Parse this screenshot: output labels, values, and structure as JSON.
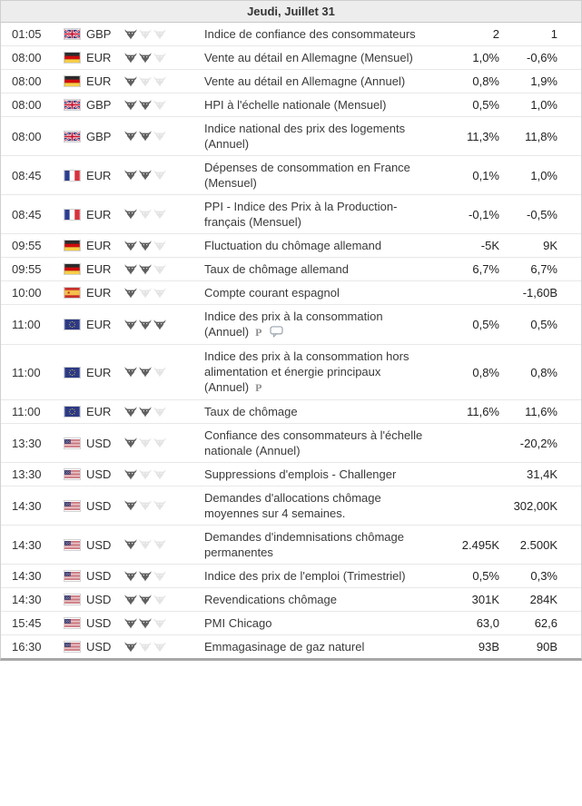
{
  "header": {
    "title": "Jeudi, Juillet 31"
  },
  "colors": {
    "header_bg": "#ededed",
    "row_border": "#e8e8e8",
    "outer_border": "#cfcfcf",
    "bottom_bar": "#a8a8a8",
    "bull_active": "#5f5f5f",
    "bull_inactive": "#e4e4e4",
    "text": "#333333"
  },
  "icons_legend": {
    "bull": "importance-bull-icon",
    "preliminary": "preliminary-p-icon",
    "comment": "comment-bubble-icon"
  },
  "rows": [
    {
      "time": "01:05",
      "country": "united-kingdom",
      "currency": "GBP",
      "importance": 1,
      "event": "Indice de confiance des consommateurs",
      "forecast": "2",
      "previous": "1",
      "icons": []
    },
    {
      "time": "08:00",
      "country": "germany",
      "currency": "EUR",
      "importance": 2,
      "event": "Vente au détail en Allemagne (Mensuel)",
      "forecast": "1,0%",
      "previous": "-0,6%",
      "icons": []
    },
    {
      "time": "08:00",
      "country": "germany",
      "currency": "EUR",
      "importance": 1,
      "event": "Vente au détail en Allemagne (Annuel)",
      "forecast": "0,8%",
      "previous": "1,9%",
      "icons": []
    },
    {
      "time": "08:00",
      "country": "united-kingdom",
      "currency": "GBP",
      "importance": 2,
      "event": "HPI à l'échelle nationale (Mensuel)",
      "forecast": "0,5%",
      "previous": "1,0%",
      "icons": []
    },
    {
      "time": "08:00",
      "country": "united-kingdom",
      "currency": "GBP",
      "importance": 2,
      "event": "Indice national des prix des logements (Annuel)",
      "forecast": "11,3%",
      "previous": "11,8%",
      "icons": []
    },
    {
      "time": "08:45",
      "country": "france",
      "currency": "EUR",
      "importance": 2,
      "event": "Dépenses de consommation en France (Mensuel)",
      "forecast": "0,1%",
      "previous": "1,0%",
      "icons": []
    },
    {
      "time": "08:45",
      "country": "france",
      "currency": "EUR",
      "importance": 1,
      "event": "PPI - Indice des Prix à la Production- français (Mensuel)",
      "forecast": "-0,1%",
      "previous": "-0,5%",
      "icons": []
    },
    {
      "time": "09:55",
      "country": "germany",
      "currency": "EUR",
      "importance": 2,
      "event": "Fluctuation du chômage allemand",
      "forecast": "-5K",
      "previous": "9K",
      "icons": []
    },
    {
      "time": "09:55",
      "country": "germany",
      "currency": "EUR",
      "importance": 2,
      "event": "Taux de chômage allemand",
      "forecast": "6,7%",
      "previous": "6,7%",
      "icons": []
    },
    {
      "time": "10:00",
      "country": "spain",
      "currency": "EUR",
      "importance": 1,
      "event": "Compte courant espagnol",
      "forecast": "",
      "previous": "-1,60B",
      "icons": []
    },
    {
      "time": "11:00",
      "country": "european-union",
      "currency": "EUR",
      "importance": 3,
      "event": "Indice des prix à la consommation (Annuel)",
      "forecast": "0,5%",
      "previous": "0,5%",
      "icons": [
        "preliminary",
        "comment"
      ]
    },
    {
      "time": "11:00",
      "country": "european-union",
      "currency": "EUR",
      "importance": 2,
      "event": "Indice des prix à la consommation hors alimentation et énergie principaux (Annuel)",
      "forecast": "0,8%",
      "previous": "0,8%",
      "icons": [
        "preliminary"
      ]
    },
    {
      "time": "11:00",
      "country": "european-union",
      "currency": "EUR",
      "importance": 2,
      "event": "Taux de chômage",
      "forecast": "11,6%",
      "previous": "11,6%",
      "icons": []
    },
    {
      "time": "13:30",
      "country": "united-states",
      "currency": "USD",
      "importance": 1,
      "event": "Confiance des consommateurs à l'échelle nationale (Annuel)",
      "forecast": "",
      "previous": "-20,2%",
      "icons": []
    },
    {
      "time": "13:30",
      "country": "united-states",
      "currency": "USD",
      "importance": 1,
      "event": "Suppressions d'emplois - Challenger",
      "forecast": "",
      "previous": "31,4K",
      "icons": []
    },
    {
      "time": "14:30",
      "country": "united-states",
      "currency": "USD",
      "importance": 1,
      "event": "Demandes d'allocations chômage moyennes sur 4 semaines.",
      "forecast": "",
      "previous": "302,00K",
      "icons": []
    },
    {
      "time": "14:30",
      "country": "united-states",
      "currency": "USD",
      "importance": 1,
      "event": "Demandes d'indemnisations chômage permanentes",
      "forecast": "2.495K",
      "previous": "2.500K",
      "icons": []
    },
    {
      "time": "14:30",
      "country": "united-states",
      "currency": "USD",
      "importance": 2,
      "event": "Indice des prix de l'emploi (Trimestriel)",
      "forecast": "0,5%",
      "previous": "0,3%",
      "icons": []
    },
    {
      "time": "14:30",
      "country": "united-states",
      "currency": "USD",
      "importance": 2,
      "event": "Revendications chômage",
      "forecast": "301K",
      "previous": "284K",
      "icons": []
    },
    {
      "time": "15:45",
      "country": "united-states",
      "currency": "USD",
      "importance": 2,
      "event": "PMI Chicago",
      "forecast": "63,0",
      "previous": "62,6",
      "icons": []
    },
    {
      "time": "16:30",
      "country": "united-states",
      "currency": "USD",
      "importance": 1,
      "event": "Emmagasinage de gaz naturel",
      "forecast": "93B",
      "previous": "90B",
      "icons": []
    }
  ]
}
